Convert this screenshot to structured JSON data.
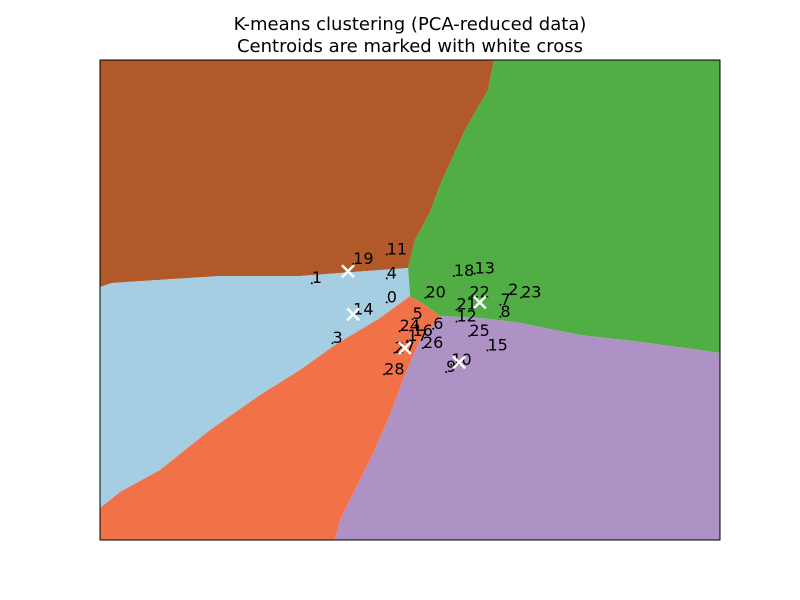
{
  "chart_data": {
    "type": "scatter",
    "title": "K-means clustering (PCA-reduced data)",
    "subtitle": "Centroids are marked with white cross",
    "xlabel": "",
    "ylabel": "",
    "xlim": [
      -6.0,
      6.0
    ],
    "ylim": [
      -5.0,
      5.0
    ],
    "ticks_shown": false,
    "grid": false,
    "legend": "none",
    "colors": {
      "region_brown": "#B15928",
      "region_green": "#50AE44",
      "region_lightblue": "#A6CEE3",
      "region_orange": "#F17149",
      "region_purple": "#AE91C5",
      "centroid": "#FFFFFF",
      "point": "#000000"
    },
    "centroids": [
      {
        "x": -1.2,
        "y": 0.6
      },
      {
        "x": -1.1,
        "y": -0.3
      },
      {
        "x": -0.1,
        "y": -1.0
      },
      {
        "x": 0.95,
        "y": -1.3
      },
      {
        "x": 1.35,
        "y": -0.05
      }
    ],
    "points": [
      {
        "label": "0",
        "x": -0.45,
        "y": -0.05
      },
      {
        "label": "1",
        "x": -1.9,
        "y": 0.35
      },
      {
        "label": "2",
        "x": 1.9,
        "y": 0.1
      },
      {
        "label": "3",
        "x": -1.5,
        "y": -0.9
      },
      {
        "label": "4",
        "x": -0.45,
        "y": 0.45
      },
      {
        "label": "5",
        "x": 0.05,
        "y": -0.4
      },
      {
        "label": "6",
        "x": 0.45,
        "y": -0.6
      },
      {
        "label": "7",
        "x": 1.75,
        "y": -0.1
      },
      {
        "label": "8",
        "x": 1.75,
        "y": -0.35
      },
      {
        "label": "9",
        "x": 0.7,
        "y": -1.5
      },
      {
        "label": "10",
        "x": 0.8,
        "y": -1.35
      },
      {
        "label": "11",
        "x": -0.45,
        "y": 0.95
      },
      {
        "label": "12",
        "x": 0.9,
        "y": -0.45
      },
      {
        "label": "13",
        "x": 1.25,
        "y": 0.55
      },
      {
        "label": "14",
        "x": -1.1,
        "y": -0.3
      },
      {
        "label": "15",
        "x": 1.5,
        "y": -1.05
      },
      {
        "label": "16",
        "x": 0.05,
        "y": -0.75
      },
      {
        "label": "17",
        "x": -0.05,
        "y": -0.85
      },
      {
        "label": "18",
        "x": 0.85,
        "y": 0.5
      },
      {
        "label": "19",
        "x": -1.1,
        "y": 0.75
      },
      {
        "label": "20",
        "x": 0.3,
        "y": 0.05
      },
      {
        "label": "21",
        "x": 0.9,
        "y": -0.2
      },
      {
        "label": "22",
        "x": 1.15,
        "y": 0.05
      },
      {
        "label": "23",
        "x": 2.15,
        "y": 0.05
      },
      {
        "label": "24",
        "x": -0.2,
        "y": -0.65
      },
      {
        "label": "25",
        "x": 1.15,
        "y": -0.75
      },
      {
        "label": "26",
        "x": 0.25,
        "y": -1.0
      },
      {
        "label": "27",
        "x": -0.3,
        "y": -1.1
      },
      {
        "label": "28",
        "x": -0.5,
        "y": -1.55
      }
    ]
  }
}
